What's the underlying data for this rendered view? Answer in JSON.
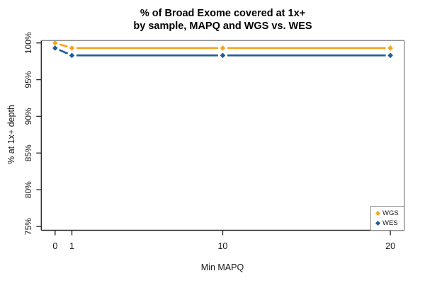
{
  "window": {
    "background": "#ffffff"
  },
  "colors": {
    "axis": "#2b2b2b",
    "box": "#8c8c8c",
    "text": "#1a1a1a",
    "wgs": "#F8A31A",
    "wes": "#1F5C99"
  },
  "chart_data": {
    "type": "line",
    "title_lines": [
      "% of Broad Exome covered at 1x+",
      "by sample, MAPQ and WGS vs. WES"
    ],
    "xlabel": "Min MAPQ",
    "ylabel": "% at 1x+ depth",
    "x": [
      0,
      1,
      10,
      20
    ],
    "x_tick_labels": [
      "0",
      "1",
      "10",
      "20"
    ],
    "y_ticks": [
      75,
      80,
      85,
      90,
      95,
      100
    ],
    "y_tick_labels": [
      "75%",
      "80%",
      "85%",
      "90%",
      "95%",
      "100%"
    ],
    "xlim": [
      0,
      20
    ],
    "ylim": [
      75,
      100
    ],
    "grid": false,
    "marker": "diamond",
    "line_style": "segments-with-point-gaps",
    "series": [
      {
        "name": "WGS",
        "color": "#F8A31A",
        "values": [
          100.0,
          99.3,
          99.3,
          99.3
        ]
      },
      {
        "name": "WES",
        "color": "#1F5C99",
        "values": [
          99.3,
          98.3,
          98.3,
          98.3
        ]
      }
    ],
    "legend": {
      "position": "bottom-right",
      "entries": [
        {
          "label": "WGS",
          "color": "#F8A31A"
        },
        {
          "label": "WES",
          "color": "#1F5C99"
        }
      ]
    }
  }
}
